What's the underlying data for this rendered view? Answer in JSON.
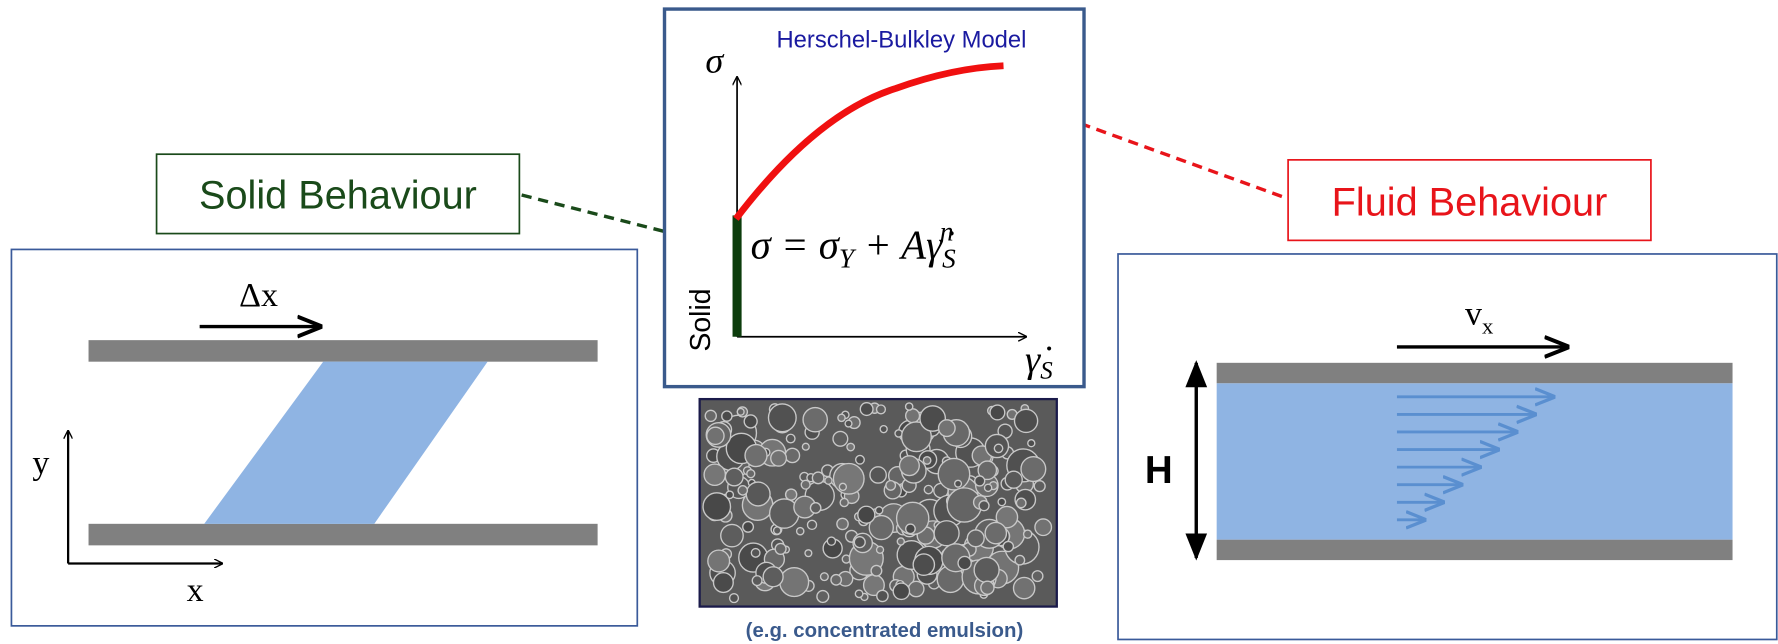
{
  "plot": {
    "title": "Herschel-Bulkley Model",
    "y_label": "σ",
    "x_label": {
      "main": "γ̇",
      "sub": "S"
    },
    "solid_label": "Solid",
    "equation": {
      "part1": "σ = σ",
      "sub1": "Y",
      "part2": " + Aγ̇",
      "sub2": "S",
      "sup": "n"
    }
  },
  "callouts": {
    "solid": "Solid Behaviour",
    "fluid": "Fluid Behaviour"
  },
  "left_panel": {
    "displacement": "Δx",
    "y_axis": "y",
    "x_axis": "x"
  },
  "right_panel": {
    "velocity": {
      "main": "v",
      "sub": "x"
    },
    "height": "H"
  },
  "caption": "(e.g.  concentrated emulsion)"
}
